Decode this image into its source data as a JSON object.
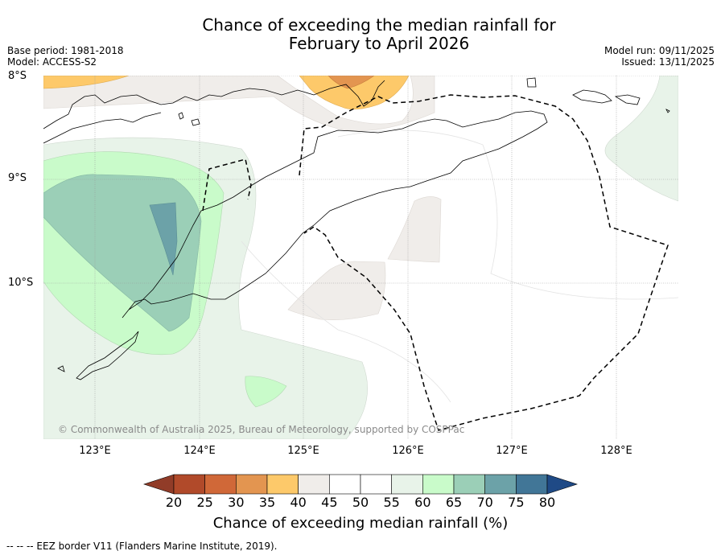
{
  "title_line1": "Chance of exceeding the median rainfall for",
  "title_line2": "February to April 2026",
  "base_period": "Base period: 1981-2018",
  "model": "Model: ACCESS-S2",
  "model_run": "Model run: 09/11/2025",
  "issued": "Issued: 13/11/2025",
  "lat_labels": [
    "8°S",
    "9°S",
    "10°S"
  ],
  "lon_labels": [
    "123°E",
    "124°E",
    "125°E",
    "126°E",
    "127°E",
    "128°E"
  ],
  "copyright": "© Commonwealth of Australia 2025, Bureau of Meteorology, supported by COSPPac",
  "colorbar": {
    "ticks": [
      "20",
      "25",
      "30",
      "35",
      "40",
      "45",
      "50",
      "55",
      "60",
      "65",
      "70",
      "75",
      "80"
    ],
    "colors": [
      "#b14a2a",
      "#d06838",
      "#e39550",
      "#fdc96a",
      "#f0edea",
      "#ffffff",
      "#ffffff",
      "#e8f3e9",
      "#c9fbca",
      "#9bcfb7",
      "#6ca2a8",
      "#417697"
    ],
    "under_color": "#913c28",
    "over_color": "#1f4a86",
    "title": "Chance of exceeding median rainfall (%)"
  },
  "eez_note": "--  --  -- EEZ border V11 (Flanders Marine Institute, 2019)."
}
